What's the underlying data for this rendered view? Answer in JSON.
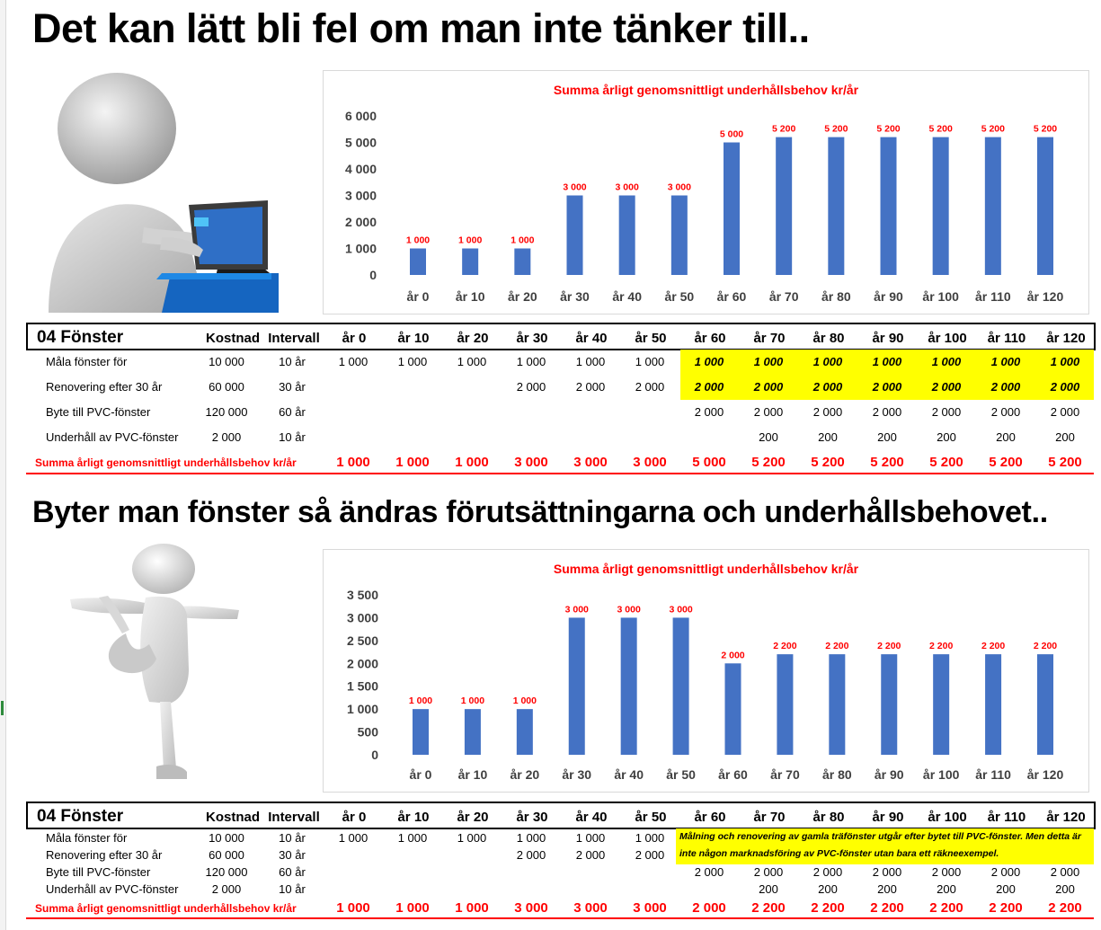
{
  "heading1": "Det kan lätt bli fel om man inte tänker till..",
  "heading2": "Byter man fönster så ändras förutsättningarna och underhållsbehovet..",
  "columns": [
    "år 0",
    "år 10",
    "år 20",
    "år 30",
    "år 40",
    "år 50",
    "år 60",
    "år 70",
    "år 80",
    "år 90",
    "år 100",
    "år 110",
    "år 120"
  ],
  "chart_data": [
    {
      "type": "bar",
      "title": "Summa årligt genomsnittligt underhållsbehov kr/år",
      "categories": [
        "år 0",
        "år 10",
        "år 20",
        "år 30",
        "år 40",
        "år 50",
        "år 60",
        "år 70",
        "år 80",
        "år 90",
        "år 100",
        "år 110",
        "år 120"
      ],
      "values": [
        1000,
        1000,
        1000,
        3000,
        3000,
        3000,
        5000,
        5200,
        5200,
        5200,
        5200,
        5200,
        5200
      ],
      "data_labels": [
        "1 000",
        "1 000",
        "1 000",
        "3 000",
        "3 000",
        "3 000",
        "5 000",
        "5 200",
        "5 200",
        "5 200",
        "5 200",
        "5 200",
        "5 200"
      ],
      "yticks": [
        "0",
        "1 000",
        "2 000",
        "3 000",
        "4 000",
        "5 000",
        "6 000"
      ],
      "ylim": [
        0,
        6000
      ],
      "grid": false,
      "bar_color": "#4472c4",
      "label_color": "#ff0000"
    },
    {
      "type": "bar",
      "title": "Summa årligt genomsnittligt underhållsbehov kr/år",
      "categories": [
        "år 0",
        "år 10",
        "år 20",
        "år 30",
        "år 40",
        "år 50",
        "år 60",
        "år 70",
        "år 80",
        "år 90",
        "år 100",
        "år 110",
        "år 120"
      ],
      "values": [
        1000,
        1000,
        1000,
        3000,
        3000,
        3000,
        2000,
        2200,
        2200,
        2200,
        2200,
        2200,
        2200
      ],
      "data_labels": [
        "1 000",
        "1 000",
        "1 000",
        "3 000",
        "3 000",
        "3 000",
        "2 000",
        "2 200",
        "2 200",
        "2 200",
        "2 200",
        "2 200",
        "2 200"
      ],
      "yticks": [
        "0",
        "500",
        "1 000",
        "1 500",
        "2 000",
        "2 500",
        "3 000",
        "3 500"
      ],
      "ylim": [
        0,
        3500
      ],
      "grid": false,
      "bar_color": "#4472c4",
      "label_color": "#ff0000"
    }
  ],
  "table1": {
    "title": "04 Fönster",
    "col_kostnad": "Kostnad",
    "col_intervall": "Intervall",
    "rows": [
      {
        "label": "Måla fönster för",
        "kostnad": "10 000",
        "intervall": "10 år",
        "values": [
          "1 000",
          "1 000",
          "1 000",
          "1 000",
          "1 000",
          "1 000",
          "1 000",
          "1 000",
          "1 000",
          "1 000",
          "1 000",
          "1 000",
          "1 000"
        ]
      },
      {
        "label": "Renovering efter 30 år",
        "kostnad": "60 000",
        "intervall": "30 år",
        "values": [
          "",
          "",
          "",
          "2 000",
          "2 000",
          "2 000",
          "2 000",
          "2 000",
          "2 000",
          "2 000",
          "2 000",
          "2 000",
          "2 000"
        ]
      },
      {
        "label": "Byte till PVC-fönster",
        "kostnad": "120 000",
        "intervall": "60 år",
        "values": [
          "",
          "",
          "",
          "",
          "",
          "",
          "2 000",
          "2 000",
          "2 000",
          "2 000",
          "2 000",
          "2 000",
          "2 000"
        ]
      },
      {
        "label": "Underhåll av PVC-fönster",
        "kostnad": "2 000",
        "intervall": "10 år",
        "values": [
          "",
          "",
          "",
          "",
          "",
          "",
          "",
          "200",
          "200",
          "200",
          "200",
          "200",
          "200"
        ]
      }
    ],
    "sum_label": "Summa årligt genomsnittligt underhållsbehov kr/år",
    "sum_values": [
      "1 000",
      "1 000",
      "1 000",
      "3 000",
      "3 000",
      "3 000",
      "5 000",
      "5 200",
      "5 200",
      "5 200",
      "5 200",
      "5 200",
      "5 200"
    ]
  },
  "table2": {
    "title": "04 Fönster",
    "col_kostnad": "Kostnad",
    "col_intervall": "Intervall",
    "rows": [
      {
        "label": "Måla fönster för",
        "kostnad": "10 000",
        "intervall": "10 år",
        "values": [
          "1 000",
          "1 000",
          "1 000",
          "1 000",
          "1 000",
          "1 000",
          "",
          "",
          "",
          "",
          "",
          "",
          ""
        ]
      },
      {
        "label": "Renovering efter 30 år",
        "kostnad": "60 000",
        "intervall": "30 år",
        "values": [
          "",
          "",
          "",
          "2 000",
          "2 000",
          "2 000",
          "",
          "",
          "",
          "",
          "",
          "",
          ""
        ]
      },
      {
        "label": "Byte till PVC-fönster",
        "kostnad": "120 000",
        "intervall": "60 år",
        "values": [
          "",
          "",
          "",
          "",
          "",
          "",
          "2 000",
          "2 000",
          "2 000",
          "2 000",
          "2 000",
          "2 000",
          "2 000"
        ]
      },
      {
        "label": "Underhåll av PVC-fönster",
        "kostnad": "2 000",
        "intervall": "10 år",
        "values": [
          "",
          "",
          "",
          "",
          "",
          "",
          "",
          "200",
          "200",
          "200",
          "200",
          "200",
          "200"
        ]
      }
    ],
    "note": "Målning och renovering av gamla träfönster utgår efter bytet till PVC-fönster. Men detta är inte någon marknadsföring av PVC-fönster utan bara ett räkneexempel.",
    "sum_label": "Summa årligt genomsnittligt underhållsbehov kr/år",
    "sum_values": [
      "1 000",
      "1 000",
      "1 000",
      "3 000",
      "3 000",
      "3 000",
      "2 000",
      "2 200",
      "2 200",
      "2 200",
      "2 200",
      "2 200",
      "2 200"
    ]
  },
  "figures": {
    "figure1_icon": "person-at-laptop-figure",
    "figure2_icon": "person-stretching-figure"
  }
}
